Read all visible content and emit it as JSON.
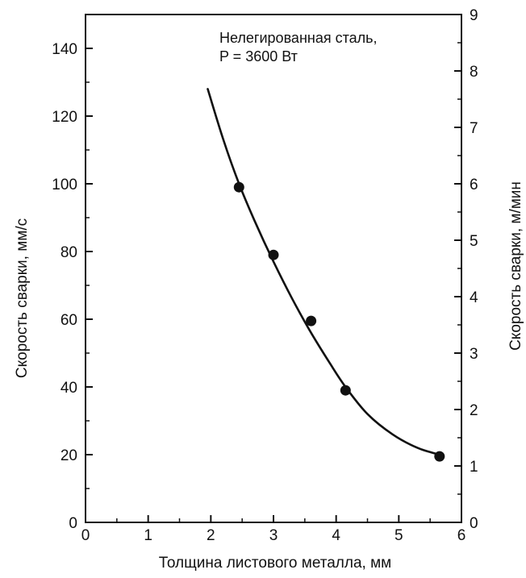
{
  "chart_data": {
    "type": "scatter",
    "xlabel": "Толщина листового металла, мм",
    "ylabel": "Скорость сварки, мм/с",
    "y2label": "Скорость сварки, м/мин",
    "xlim": [
      0,
      6
    ],
    "ylim": [
      0,
      150
    ],
    "y2lim": [
      0,
      9
    ],
    "x_ticks": [
      "0",
      "1",
      "2",
      "3",
      "4",
      "5",
      "6"
    ],
    "y_ticks": [
      "0",
      "20",
      "40",
      "60",
      "80",
      "100",
      "120",
      "140"
    ],
    "y2_ticks": [
      "0",
      "1",
      "2",
      "3",
      "4",
      "5",
      "6",
      "7",
      "8",
      "9"
    ],
    "annotation": {
      "line1": "Нелегированная сталь,",
      "line2": "P = 3600 Вт"
    },
    "grid": false,
    "series": [
      {
        "kind": "points",
        "x": [
          2.45,
          3.0,
          3.6,
          4.15,
          5.65
        ],
        "y": [
          99,
          79,
          59.5,
          39,
          19.5
        ]
      },
      {
        "kind": "fit-curve",
        "x": [
          1.95,
          2.2,
          2.45,
          2.7,
          3.0,
          3.3,
          3.6,
          3.9,
          4.15,
          4.5,
          4.9,
          5.3,
          5.65
        ],
        "y": [
          128,
          113,
          100,
          89,
          77,
          66,
          56,
          47,
          40,
          32,
          26,
          22,
          20
        ]
      }
    ],
    "colors": {
      "line": "#111111",
      "marker": "#111111",
      "axis": "#111111"
    }
  }
}
